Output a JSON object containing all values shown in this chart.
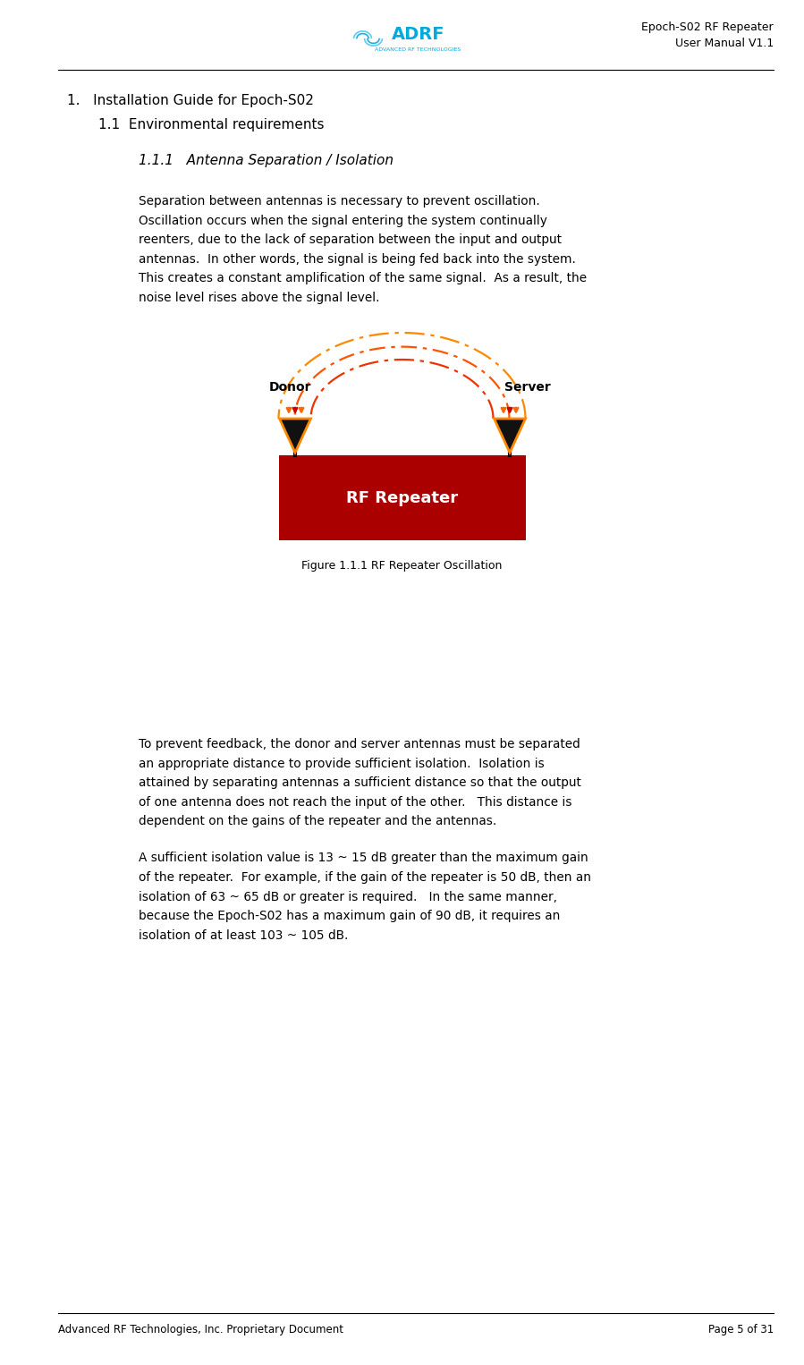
{
  "page_width": 8.99,
  "page_height": 15.26,
  "bg_color": "#ffffff",
  "title_right_line1": "Epoch-S02 RF Repeater",
  "title_right_line2": "User Manual V1.1",
  "section1_title": "1.   Installation Guide for Epoch-S02",
  "section11_title": "1.1  Environmental requirements",
  "section111_title": "1.1.1   Antenna Separation / Isolation",
  "para1_lines": [
    "Separation between antennas is necessary to prevent oscillation.",
    "Oscillation occurs when the signal entering the system continually",
    "reenters, due to the lack of separation between the input and output",
    "antennas.  In other words, the signal is being fed back into the system.",
    "This creates a constant amplification of the same signal.  As a result, the",
    "noise level rises above the signal level."
  ],
  "figure_caption": "Figure 1.1.1 RF Repeater Oscillation",
  "para2_lines": [
    "To prevent feedback, the donor and server antennas must be separated",
    "an appropriate distance to provide sufficient isolation.  Isolation is",
    "attained by separating antennas a sufficient distance so that the output",
    "of one antenna does not reach the input of the other.   This distance is",
    "dependent on the gains of the repeater and the antennas."
  ],
  "para3_lines": [
    "A sufficient isolation value is 13 ~ 15 dB greater than the maximum gain",
    "of the repeater.  For example, if the gain of the repeater is 50 dB, then an",
    "isolation of 63 ~ 65 dB or greater is required.   In the same manner,",
    "because the Epoch-S02 has a maximum gain of 90 dB, it requires an",
    "isolation of at least 103 ~ 105 dB."
  ],
  "footer_left": "Advanced RF Technologies, Inc. Proprietary Document",
  "footer_right": "Page 5 of 31",
  "repeater_color": "#AA0000",
  "antenna_color": "#111111",
  "antenna_outline": "#FF8800",
  "arrow_red": "#CC0000",
  "arrow_orange": "#FF6600",
  "arc_colors": [
    "#EE3300",
    "#FF5500",
    "#FF8800"
  ],
  "donor_label": "Donor",
  "server_label": "Server",
  "rf_label": "RF Repeater"
}
